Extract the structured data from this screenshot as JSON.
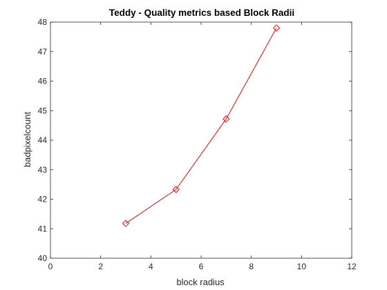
{
  "chart_data": {
    "type": "line",
    "title": "Teddy - Quality metrics based Block Radii",
    "xlabel": "block radius",
    "ylabel": "badpixelcount",
    "xlim": [
      0,
      12
    ],
    "ylim": [
      40,
      48
    ],
    "xticks": [
      0,
      2,
      4,
      6,
      8,
      10,
      12
    ],
    "yticks": [
      40,
      41,
      42,
      43,
      44,
      45,
      46,
      47,
      48
    ],
    "grid": false,
    "series": [
      {
        "x": [
          3,
          5,
          7,
          9
        ],
        "values": [
          41.18,
          42.33,
          44.72,
          47.8
        ],
        "color": "#ff0000",
        "marker": "diamond"
      }
    ]
  }
}
